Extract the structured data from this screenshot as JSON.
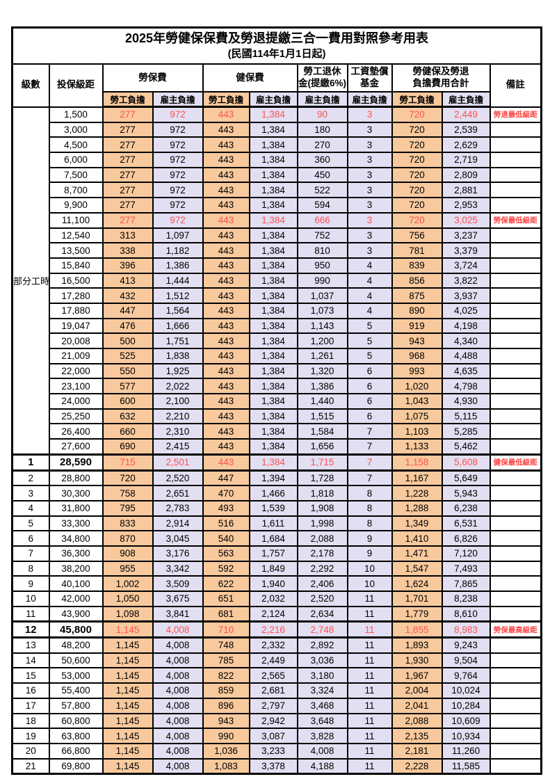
{
  "title": "2025年勞健保保費及勞退提繳三合一費用對照參考用表",
  "subtitle": "(民國114年1月1日起)",
  "colors": {
    "employee_col_bg": "#F8C99D",
    "employer_col_bg": "#E1DFF1",
    "highlight_value_text": "#FF5050",
    "remark_text": "#FF4242",
    "border": "#000000"
  },
  "header": {
    "level": "級數",
    "salary_bracket": "投保級距",
    "labor_insurance": "勞保費",
    "health_insurance": "健保費",
    "pension_line1": "勞工退休",
    "pension_line2": "金(提繳6%)",
    "wage_fund_line1": "工資墊償",
    "wage_fund_line2": "基金",
    "total_line1": "勞健保及勞退",
    "total_line2": "負擔費用合計",
    "remark": "備註",
    "employee": "勞工負擔",
    "employer": "雇主負擔"
  },
  "table": {
    "part_time_label": "部分工時",
    "part_time_rowspan": 23,
    "rows": [
      {
        "lv": "",
        "sal": "1,500",
        "v": [
          "277",
          "972",
          "443",
          "1,384",
          "90",
          "3",
          "720",
          "2,449"
        ],
        "rm": "勞退最低級距",
        "hl": true,
        "b": false
      },
      {
        "lv": "",
        "sal": "3,000",
        "v": [
          "277",
          "972",
          "443",
          "1,384",
          "180",
          "3",
          "720",
          "2,539"
        ],
        "rm": "",
        "hl": false,
        "b": false
      },
      {
        "lv": "",
        "sal": "4,500",
        "v": [
          "277",
          "972",
          "443",
          "1,384",
          "270",
          "3",
          "720",
          "2,629"
        ],
        "rm": "",
        "hl": false,
        "b": false
      },
      {
        "lv": "",
        "sal": "6,000",
        "v": [
          "277",
          "972",
          "443",
          "1,384",
          "360",
          "3",
          "720",
          "2,719"
        ],
        "rm": "",
        "hl": false,
        "b": false
      },
      {
        "lv": "",
        "sal": "7,500",
        "v": [
          "277",
          "972",
          "443",
          "1,384",
          "450",
          "3",
          "720",
          "2,809"
        ],
        "rm": "",
        "hl": false,
        "b": false
      },
      {
        "lv": "",
        "sal": "8,700",
        "v": [
          "277",
          "972",
          "443",
          "1,384",
          "522",
          "3",
          "720",
          "2,881"
        ],
        "rm": "",
        "hl": false,
        "b": false
      },
      {
        "lv": "",
        "sal": "9,900",
        "v": [
          "277",
          "972",
          "443",
          "1,384",
          "594",
          "3",
          "720",
          "2,953"
        ],
        "rm": "",
        "hl": false,
        "b": false
      },
      {
        "lv": "",
        "sal": "11,100",
        "v": [
          "277",
          "972",
          "443",
          "1,384",
          "666",
          "3",
          "720",
          "3,025"
        ],
        "rm": "勞保最低級距",
        "hl": true,
        "b": false
      },
      {
        "lv": "",
        "sal": "12,540",
        "v": [
          "313",
          "1,097",
          "443",
          "1,384",
          "752",
          "3",
          "756",
          "3,237"
        ],
        "rm": "",
        "hl": false,
        "b": false
      },
      {
        "lv": "",
        "sal": "13,500",
        "v": [
          "338",
          "1,182",
          "443",
          "1,384",
          "810",
          "3",
          "781",
          "3,379"
        ],
        "rm": "",
        "hl": false,
        "b": false
      },
      {
        "lv": "",
        "sal": "15,840",
        "v": [
          "396",
          "1,386",
          "443",
          "1,384",
          "950",
          "4",
          "839",
          "3,724"
        ],
        "rm": "",
        "hl": false,
        "b": false
      },
      {
        "lv": "",
        "sal": "16,500",
        "v": [
          "413",
          "1,444",
          "443",
          "1,384",
          "990",
          "4",
          "856",
          "3,822"
        ],
        "rm": "",
        "hl": false,
        "b": false
      },
      {
        "lv": "",
        "sal": "17,280",
        "v": [
          "432",
          "1,512",
          "443",
          "1,384",
          "1,037",
          "4",
          "875",
          "3,937"
        ],
        "rm": "",
        "hl": false,
        "b": false
      },
      {
        "lv": "",
        "sal": "17,880",
        "v": [
          "447",
          "1,564",
          "443",
          "1,384",
          "1,073",
          "4",
          "890",
          "4,025"
        ],
        "rm": "",
        "hl": false,
        "b": false
      },
      {
        "lv": "",
        "sal": "19,047",
        "v": [
          "476",
          "1,666",
          "443",
          "1,384",
          "1,143",
          "5",
          "919",
          "4,198"
        ],
        "rm": "",
        "hl": false,
        "b": false
      },
      {
        "lv": "",
        "sal": "20,008",
        "v": [
          "500",
          "1,751",
          "443",
          "1,384",
          "1,200",
          "5",
          "943",
          "4,340"
        ],
        "rm": "",
        "hl": false,
        "b": false
      },
      {
        "lv": "",
        "sal": "21,009",
        "v": [
          "525",
          "1,838",
          "443",
          "1,384",
          "1,261",
          "5",
          "968",
          "4,488"
        ],
        "rm": "",
        "hl": false,
        "b": false
      },
      {
        "lv": "",
        "sal": "22,000",
        "v": [
          "550",
          "1,925",
          "443",
          "1,384",
          "1,320",
          "6",
          "993",
          "4,635"
        ],
        "rm": "",
        "hl": false,
        "b": false
      },
      {
        "lv": "",
        "sal": "23,100",
        "v": [
          "577",
          "2,022",
          "443",
          "1,384",
          "1,386",
          "6",
          "1,020",
          "4,798"
        ],
        "rm": "",
        "hl": false,
        "b": false
      },
      {
        "lv": "",
        "sal": "24,000",
        "v": [
          "600",
          "2,100",
          "443",
          "1,384",
          "1,440",
          "6",
          "1,043",
          "4,930"
        ],
        "rm": "",
        "hl": false,
        "b": false
      },
      {
        "lv": "",
        "sal": "25,250",
        "v": [
          "632",
          "2,210",
          "443",
          "1,384",
          "1,515",
          "6",
          "1,075",
          "5,115"
        ],
        "rm": "",
        "hl": false,
        "b": false
      },
      {
        "lv": "",
        "sal": "26,400",
        "v": [
          "660",
          "2,310",
          "443",
          "1,384",
          "1,584",
          "7",
          "1,103",
          "5,285"
        ],
        "rm": "",
        "hl": false,
        "b": false
      },
      {
        "lv": "",
        "sal": "27,600",
        "v": [
          "690",
          "2,415",
          "443",
          "1,384",
          "1,656",
          "7",
          "1,133",
          "5,462"
        ],
        "rm": "",
        "hl": false,
        "b": false
      },
      {
        "lv": "1",
        "sal": "28,590",
        "v": [
          "715",
          "2,501",
          "443",
          "1,384",
          "1,715",
          "7",
          "1,158",
          "5,608"
        ],
        "rm": "健保最低級距",
        "hl": true,
        "b": true
      },
      {
        "lv": "2",
        "sal": "28,800",
        "v": [
          "720",
          "2,520",
          "447",
          "1,394",
          "1,728",
          "7",
          "1,167",
          "5,649"
        ],
        "rm": "",
        "hl": false,
        "b": false
      },
      {
        "lv": "3",
        "sal": "30,300",
        "v": [
          "758",
          "2,651",
          "470",
          "1,466",
          "1,818",
          "8",
          "1,228",
          "5,943"
        ],
        "rm": "",
        "hl": false,
        "b": false
      },
      {
        "lv": "4",
        "sal": "31,800",
        "v": [
          "795",
          "2,783",
          "493",
          "1,539",
          "1,908",
          "8",
          "1,288",
          "6,238"
        ],
        "rm": "",
        "hl": false,
        "b": false
      },
      {
        "lv": "5",
        "sal": "33,300",
        "v": [
          "833",
          "2,914",
          "516",
          "1,611",
          "1,998",
          "8",
          "1,349",
          "6,531"
        ],
        "rm": "",
        "hl": false,
        "b": false
      },
      {
        "lv": "6",
        "sal": "34,800",
        "v": [
          "870",
          "3,045",
          "540",
          "1,684",
          "2,088",
          "9",
          "1,410",
          "6,826"
        ],
        "rm": "",
        "hl": false,
        "b": false
      },
      {
        "lv": "7",
        "sal": "36,300",
        "v": [
          "908",
          "3,176",
          "563",
          "1,757",
          "2,178",
          "9",
          "1,471",
          "7,120"
        ],
        "rm": "",
        "hl": false,
        "b": false
      },
      {
        "lv": "8",
        "sal": "38,200",
        "v": [
          "955",
          "3,342",
          "592",
          "1,849",
          "2,292",
          "10",
          "1,547",
          "7,493"
        ],
        "rm": "",
        "hl": false,
        "b": false
      },
      {
        "lv": "9",
        "sal": "40,100",
        "v": [
          "1,002",
          "3,509",
          "622",
          "1,940",
          "2,406",
          "10",
          "1,624",
          "7,865"
        ],
        "rm": "",
        "hl": false,
        "b": false
      },
      {
        "lv": "10",
        "sal": "42,000",
        "v": [
          "1,050",
          "3,675",
          "651",
          "2,032",
          "2,520",
          "11",
          "1,701",
          "8,238"
        ],
        "rm": "",
        "hl": false,
        "b": false
      },
      {
        "lv": "11",
        "sal": "43,900",
        "v": [
          "1,098",
          "3,841",
          "681",
          "2,124",
          "2,634",
          "11",
          "1,779",
          "8,610"
        ],
        "rm": "",
        "hl": false,
        "b": false
      },
      {
        "lv": "12",
        "sal": "45,800",
        "v": [
          "1,145",
          "4,008",
          "710",
          "2,216",
          "2,748",
          "11",
          "1,855",
          "8,983"
        ],
        "rm": "勞保最高級距",
        "hl": true,
        "b": true
      },
      {
        "lv": "13",
        "sal": "48,200",
        "v": [
          "1,145",
          "4,008",
          "748",
          "2,332",
          "2,892",
          "11",
          "1,893",
          "9,243"
        ],
        "rm": "",
        "hl": false,
        "b": false
      },
      {
        "lv": "14",
        "sal": "50,600",
        "v": [
          "1,145",
          "4,008",
          "785",
          "2,449",
          "3,036",
          "11",
          "1,930",
          "9,504"
        ],
        "rm": "",
        "hl": false,
        "b": false
      },
      {
        "lv": "15",
        "sal": "53,000",
        "v": [
          "1,145",
          "4,008",
          "822",
          "2,565",
          "3,180",
          "11",
          "1,967",
          "9,764"
        ],
        "rm": "",
        "hl": false,
        "b": false
      },
      {
        "lv": "16",
        "sal": "55,400",
        "v": [
          "1,145",
          "4,008",
          "859",
          "2,681",
          "3,324",
          "11",
          "2,004",
          "10,024"
        ],
        "rm": "",
        "hl": false,
        "b": false
      },
      {
        "lv": "17",
        "sal": "57,800",
        "v": [
          "1,145",
          "4,008",
          "896",
          "2,797",
          "3,468",
          "11",
          "2,041",
          "10,284"
        ],
        "rm": "",
        "hl": false,
        "b": false
      },
      {
        "lv": "18",
        "sal": "60,800",
        "v": [
          "1,145",
          "4,008",
          "943",
          "2,942",
          "3,648",
          "11",
          "2,088",
          "10,609"
        ],
        "rm": "",
        "hl": false,
        "b": false
      },
      {
        "lv": "19",
        "sal": "63,800",
        "v": [
          "1,145",
          "4,008",
          "990",
          "3,087",
          "3,828",
          "11",
          "2,135",
          "10,934"
        ],
        "rm": "",
        "hl": false,
        "b": false
      },
      {
        "lv": "20",
        "sal": "66,800",
        "v": [
          "1,145",
          "4,008",
          "1,036",
          "3,233",
          "4,008",
          "11",
          "2,181",
          "11,260"
        ],
        "rm": "",
        "hl": false,
        "b": false
      },
      {
        "lv": "21",
        "sal": "69,800",
        "v": [
          "1,145",
          "4,008",
          "1,083",
          "3,378",
          "4,188",
          "11",
          "2,228",
          "11,585"
        ],
        "rm": "",
        "hl": false,
        "b": false
      }
    ]
  }
}
